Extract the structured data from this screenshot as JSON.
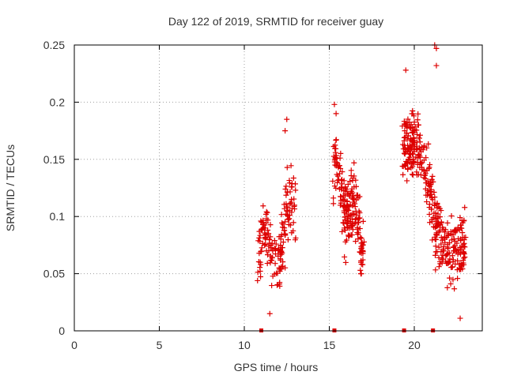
{
  "chart_data": {
    "type": "scatter",
    "title": "Day 122 of 2019, SRMTID for receiver guay",
    "xlabel": "GPS time / hours",
    "ylabel": "SRMTID / TECUs",
    "xlim": [
      0,
      24
    ],
    "ylim": [
      0,
      0.25
    ],
    "x_ticks": [
      0,
      5,
      10,
      15,
      20
    ],
    "x_tick_labels": [
      "0",
      "5",
      "10",
      "15",
      "20"
    ],
    "y_ticks": [
      0,
      0.05,
      0.1,
      0.15,
      0.2,
      0.25
    ],
    "y_tick_labels": [
      "0",
      "0.05",
      "0.1",
      "0.15",
      "0.2",
      "0.25"
    ],
    "grid": true,
    "marker": "+",
    "series_color": "#dd0000",
    "clusters": [
      {
        "x_start": 10.8,
        "x_end": 13.0,
        "y_peak": 0.185,
        "y_low": 0.015,
        "n": 180
      },
      {
        "x_start": 15.2,
        "x_end": 17.0,
        "y_peak": 0.2,
        "y_low": 0.05,
        "n": 200
      },
      {
        "x_start": 19.3,
        "x_end": 23.0,
        "y_peak": 0.25,
        "y_low": 0.01,
        "n": 380
      }
    ],
    "highlight_points": [
      {
        "x": 12.5,
        "y": 0.185
      },
      {
        "x": 12.4,
        "y": 0.175
      },
      {
        "x": 15.3,
        "y": 0.198
      },
      {
        "x": 15.4,
        "y": 0.19
      },
      {
        "x": 19.5,
        "y": 0.228
      },
      {
        "x": 21.2,
        "y": 0.25
      },
      {
        "x": 21.3,
        "y": 0.247
      },
      {
        "x": 21.3,
        "y": 0.232
      },
      {
        "x": 11.5,
        "y": 0.015
      },
      {
        "x": 22.7,
        "y": 0.011
      }
    ],
    "baseline_markers": [
      11.0,
      15.3,
      19.4,
      21.1
    ]
  }
}
